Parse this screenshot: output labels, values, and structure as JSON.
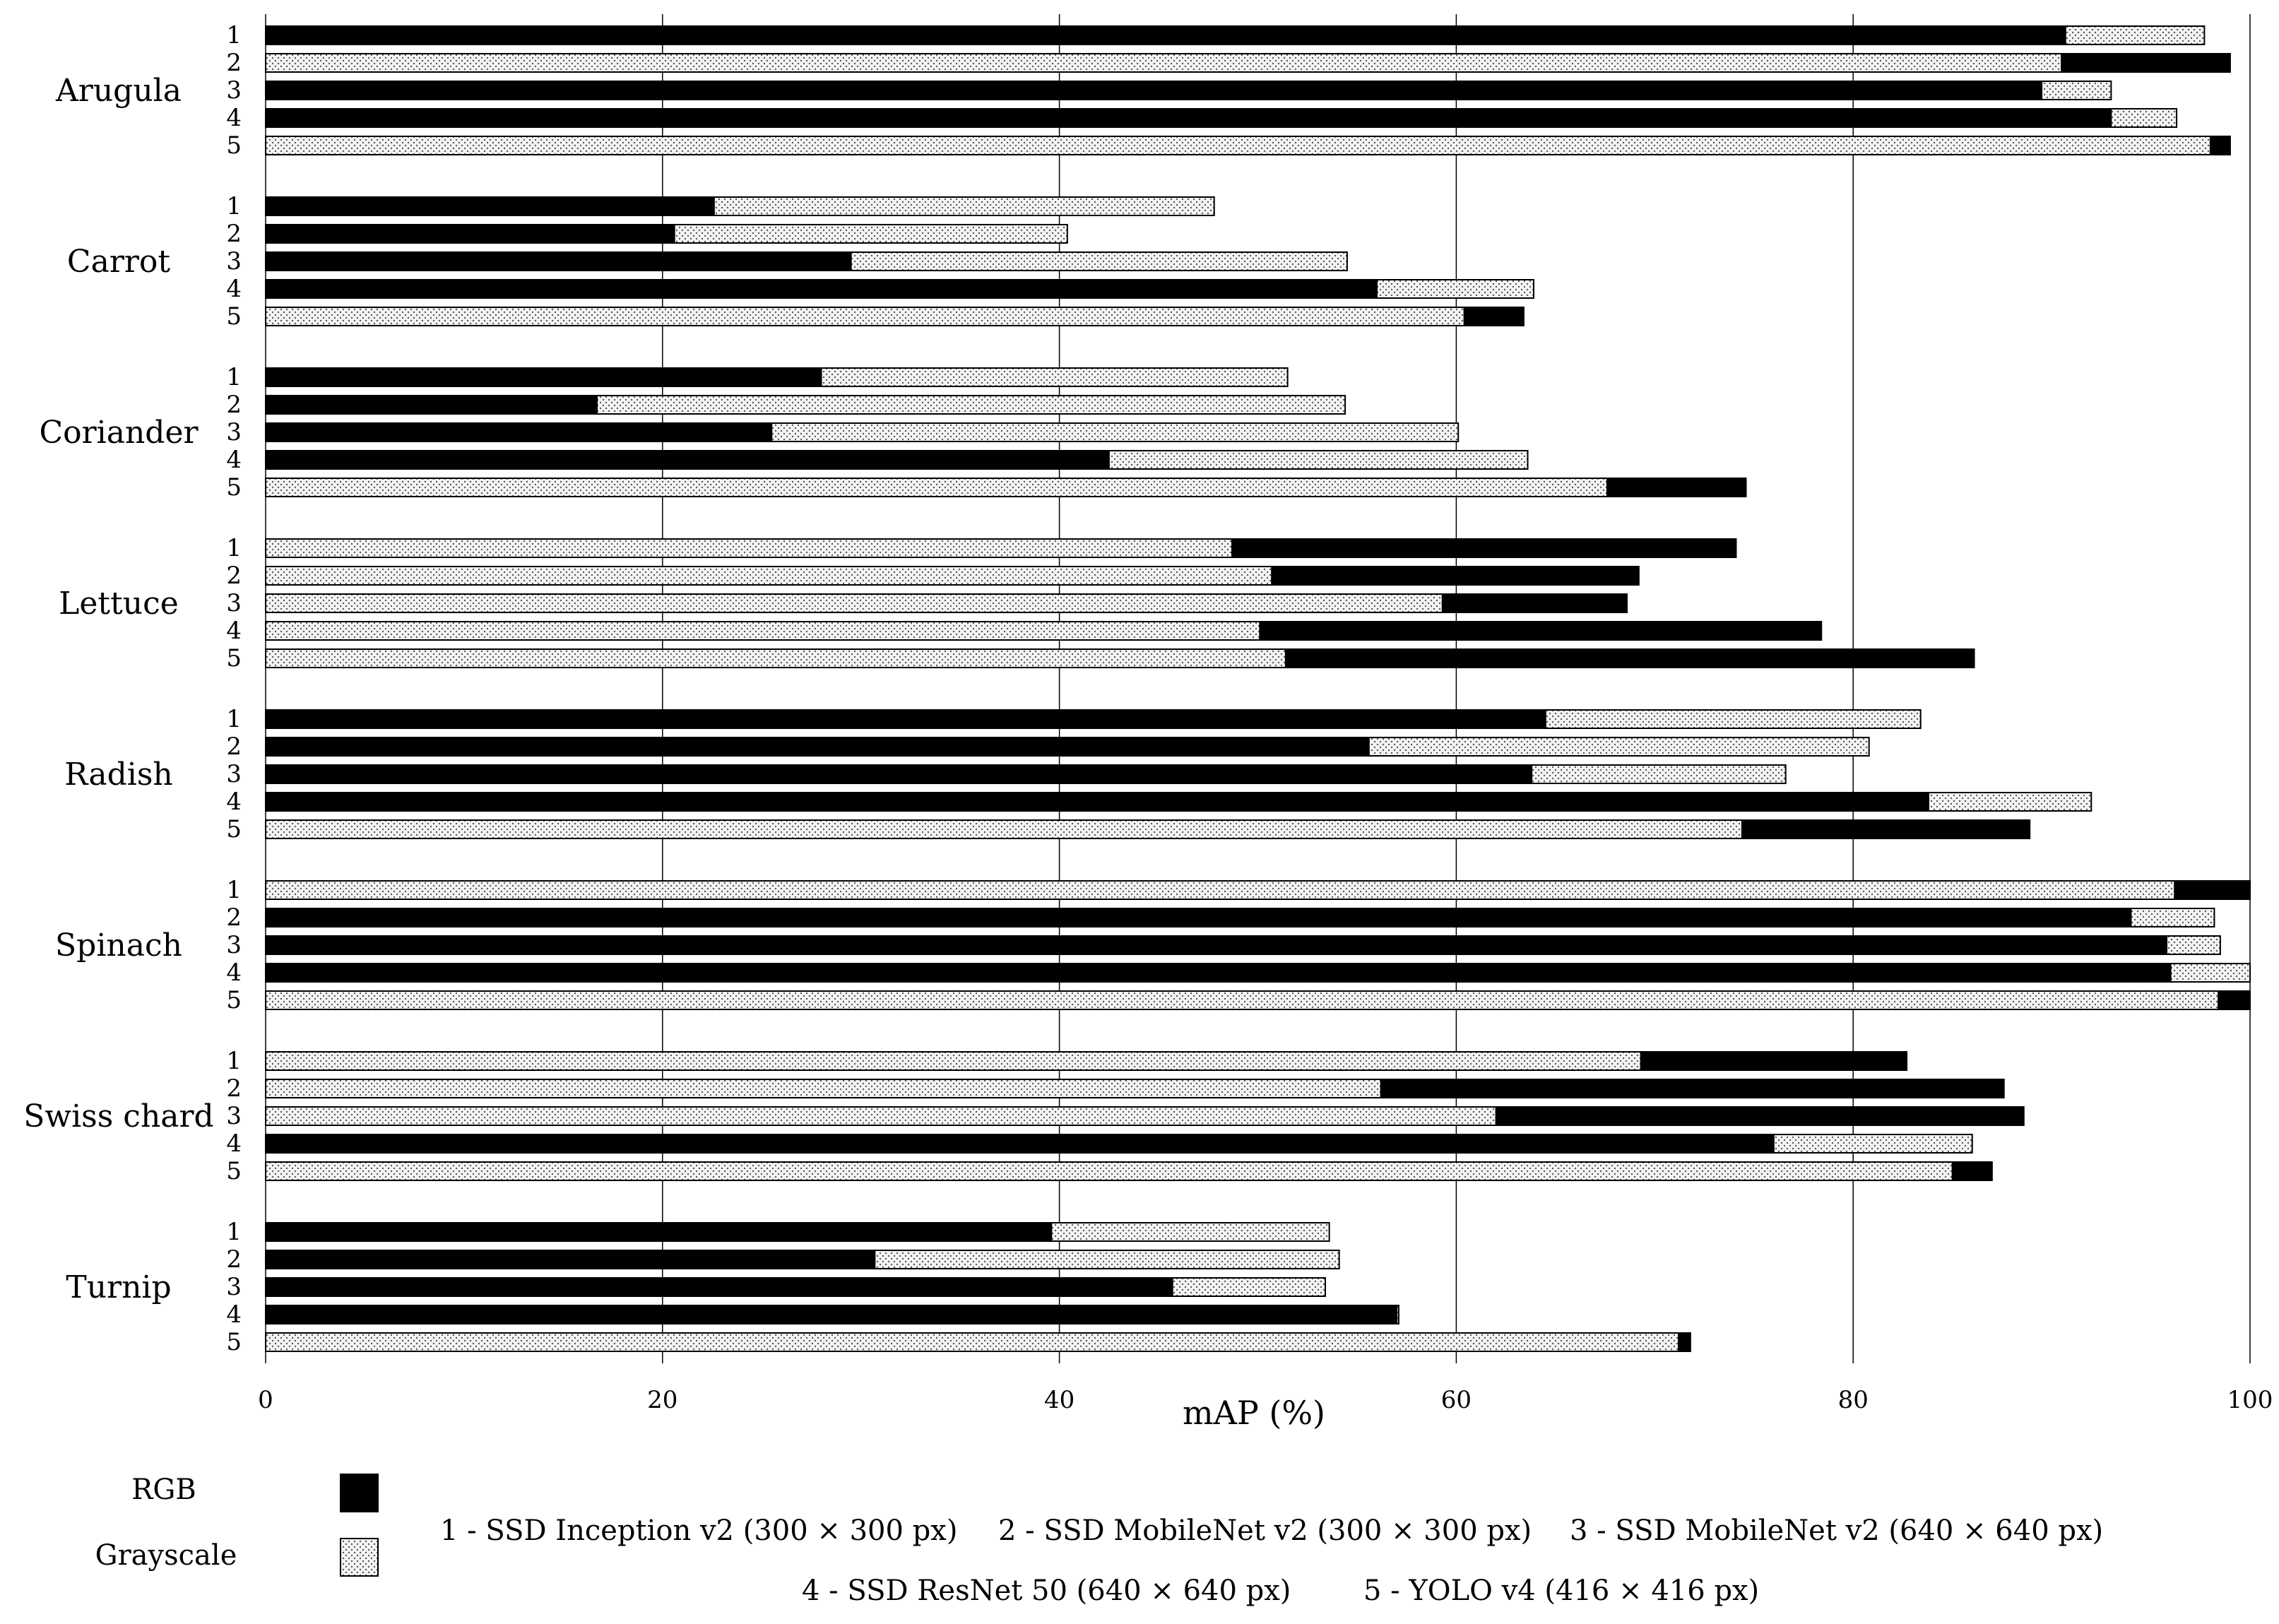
{
  "chart_data": {
    "type": "bar",
    "orientation": "horizontal",
    "xlabel": "mAP (%)",
    "xlim": [
      0,
      100
    ],
    "xticks": [
      0,
      20,
      40,
      60,
      80,
      100
    ],
    "grid": "vertical",
    "categories": [
      "Arugula",
      "Carrot",
      "Coriander",
      "Lettuce",
      "Radish",
      "Spinach",
      "Swiss chard",
      "Turnip"
    ],
    "model_labels": [
      "1",
      "2",
      "3",
      "4",
      "5"
    ],
    "series": [
      {
        "name": "RGB",
        "color": "#000000",
        "values": [
          [
            90.7,
            99.0,
            89.5,
            93.0,
            99.0
          ],
          [
            22.6,
            20.6,
            29.5,
            56.0,
            63.4
          ],
          [
            28.0,
            16.7,
            25.5,
            42.5,
            74.6
          ],
          [
            74.1,
            69.2,
            68.6,
            78.4,
            86.1
          ],
          [
            64.5,
            55.6,
            63.8,
            83.8,
            88.9
          ],
          [
            100.0,
            94.0,
            95.8,
            96.0,
            100.0
          ],
          [
            82.7,
            87.6,
            88.6,
            76.0,
            87.0
          ],
          [
            39.6,
            30.7,
            45.7,
            57.0,
            71.8
          ]
        ]
      },
      {
        "name": "Grayscale",
        "color": "#e8e8e8",
        "values": [
          [
            97.7,
            90.5,
            93.0,
            96.3,
            98.0
          ],
          [
            47.8,
            40.4,
            54.5,
            63.9,
            60.4
          ],
          [
            51.5,
            54.4,
            60.1,
            63.6,
            67.6
          ],
          [
            48.7,
            50.7,
            59.3,
            50.1,
            51.4
          ],
          [
            83.4,
            80.8,
            76.6,
            92.0,
            74.4
          ],
          [
            96.2,
            98.2,
            98.5,
            100.0,
            98.4
          ],
          [
            69.3,
            56.2,
            62.0,
            86.0,
            85.0
          ],
          [
            53.6,
            54.1,
            53.4,
            57.1,
            71.2
          ]
        ]
      }
    ],
    "legend": {
      "placement": "bottom",
      "entries": [
        "RGB",
        "Grayscale"
      ],
      "model_keys": [
        "1 - SSD Inception v2 (300 × 300 px)",
        "2 - SSD MobileNet v2 (300 × 300 px)",
        "3 - SSD MobileNet v2 (640 × 640 px)",
        "4 - SSD ResNet 50 (640 × 640 px)",
        "5 - YOLO v4 (416 × 416 px)"
      ]
    }
  }
}
